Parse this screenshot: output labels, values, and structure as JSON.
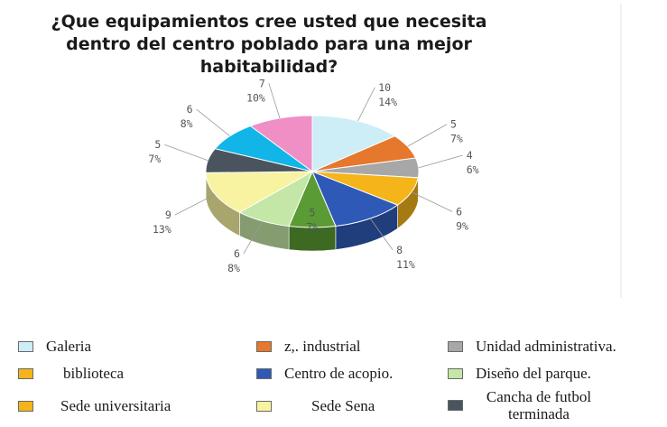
{
  "chart_data": {
    "type": "pie",
    "title_lines": [
      "¿Que equipamientos cree usted que necesita",
      "dentro del centro poblado para una mejor",
      "habitabilidad?"
    ],
    "slices": [
      {
        "name": "Galeria",
        "value": 10,
        "percent": "14%",
        "color": "#cdeef7"
      },
      {
        "name": "z,. industrial",
        "value": 5,
        "percent": "7%",
        "color": "#e5782c"
      },
      {
        "name": "Unidad administrativa.",
        "value": 4,
        "percent": "6%",
        "color": "#a7a7a7"
      },
      {
        "name": "biblioteca",
        "value": 6,
        "percent": "9%",
        "color": "#f4b41a"
      },
      {
        "name": "Centro de acopio.",
        "value": 8,
        "percent": "11%",
        "color": "#2f59b6"
      },
      {
        "name": "",
        "value": 5,
        "percent": "7%",
        "color": "#5a9b34"
      },
      {
        "name": "Diseño del parque.",
        "value": 6,
        "percent": "8%",
        "color": "#c4e6a6"
      },
      {
        "name": "Sede Sena",
        "value": 9,
        "percent": "13%",
        "color": "#f7f3a0"
      },
      {
        "name": "Cancha de futbol terminada",
        "value": 5,
        "percent": "7%",
        "color": "#4a545e"
      },
      {
        "name": "",
        "value": 6,
        "percent": "8%",
        "color": "#12b5e8"
      },
      {
        "name": "",
        "value": 7,
        "percent": "10%",
        "color": "#ef8fc6"
      }
    ],
    "legend": [
      {
        "label": "Galeria",
        "color": "#cdeef7"
      },
      {
        "label": "z,. industrial",
        "color": "#e5782c"
      },
      {
        "label": "Unidad administrativa.",
        "color": "#a7a7a7"
      },
      {
        "label": "biblioteca",
        "color": "#f4b41a"
      },
      {
        "label": "Centro de acopio.",
        "color": "#2f59b6"
      },
      {
        "label": "Diseño del parque.",
        "color": "#c4e6a6"
      },
      {
        "label": "Sede universitaria",
        "color": "#f4b41a"
      },
      {
        "label": "Sede Sena",
        "color": "#f7f3a0"
      },
      {
        "label": "Cancha de futbol terminada",
        "color": "#4a545e"
      }
    ]
  }
}
